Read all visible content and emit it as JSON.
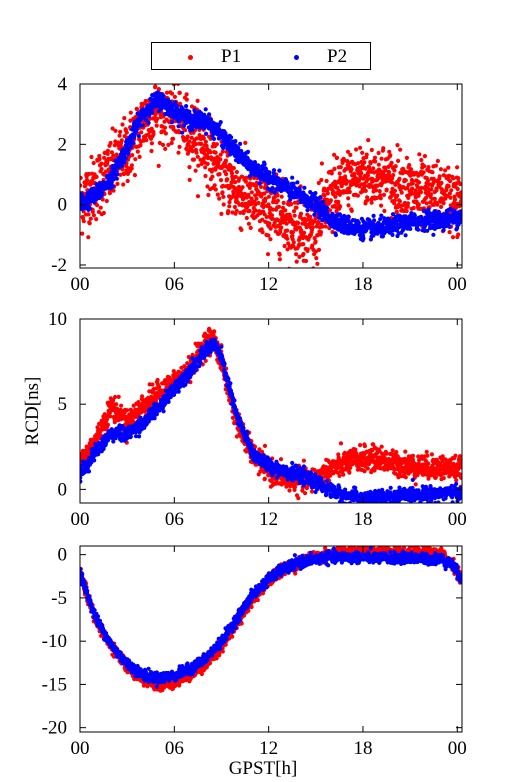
{
  "legend": {
    "entries": [
      {
        "label": "P1",
        "color": "#ff0000"
      },
      {
        "label": "P2",
        "color": "#0000ff"
      }
    ]
  },
  "colors": {
    "P1": "#ff0000",
    "P2": "#0000ff",
    "axis": "#000000"
  },
  "chart_data": [
    {
      "type": "scatter",
      "title": "",
      "xlabel": "",
      "ylabel": "",
      "xlim": [
        0,
        24.3
      ],
      "ylim": [
        -2.1,
        4.0
      ],
      "xticks": [
        "00",
        "06",
        "12",
        "18",
        "00"
      ],
      "xtick_values": [
        0,
        6,
        12,
        18,
        24
      ],
      "yticks": [
        "-2",
        "0",
        "2",
        "4"
      ],
      "ytick_values": [
        -2,
        0,
        2,
        4
      ],
      "noise": {
        "P1": 0.55,
        "P2": 0.15
      },
      "series": [
        {
          "name": "P1",
          "color": "#ff0000",
          "x": [
            0,
            1,
            2,
            3,
            4,
            5,
            6,
            7,
            8,
            9,
            10,
            11,
            12,
            13,
            14,
            15,
            16,
            17,
            18,
            19,
            20,
            21,
            22,
            23,
            24.3
          ],
          "y": [
            0.1,
            0.6,
            1.1,
            1.8,
            2.7,
            3.2,
            3.0,
            2.4,
            1.9,
            1.1,
            0.4,
            0.1,
            -0.2,
            -0.5,
            -0.7,
            -0.8,
            0.3,
            0.7,
            1.0,
            0.9,
            0.7,
            0.5,
            0.3,
            0.2,
            0.1
          ]
        },
        {
          "name": "P2",
          "color": "#0000ff",
          "x": [
            0,
            1,
            2,
            3,
            4,
            5,
            6,
            7,
            8,
            9,
            10,
            11,
            12,
            13,
            14,
            15,
            16,
            17,
            18,
            19,
            20,
            21,
            22,
            23,
            24.3
          ],
          "y": [
            0.0,
            0.3,
            0.9,
            1.9,
            3.0,
            3.5,
            3.1,
            2.8,
            2.8,
            2.3,
            1.7,
            1.2,
            0.9,
            0.6,
            0.3,
            0.0,
            -0.5,
            -0.7,
            -0.8,
            -0.8,
            -0.7,
            -0.6,
            -0.5,
            -0.5,
            -0.4
          ]
        }
      ]
    },
    {
      "type": "scatter",
      "title": "",
      "xlabel": "",
      "ylabel": "RCD[ns]",
      "xlim": [
        0,
        24.3
      ],
      "ylim": [
        -0.8,
        10.0
      ],
      "xticks": [
        "00",
        "06",
        "12",
        "18",
        "00"
      ],
      "xtick_values": [
        0,
        6,
        12,
        18,
        24
      ],
      "yticks": [
        "0",
        "5",
        "10"
      ],
      "ytick_values": [
        0,
        5,
        10
      ],
      "noise": {
        "P1": 0.35,
        "P2": 0.2
      },
      "series": [
        {
          "name": "P1",
          "color": "#ff0000",
          "x": [
            0,
            1,
            2,
            3,
            4,
            5,
            6,
            7,
            8,
            8.5,
            9,
            10,
            11,
            12,
            13,
            14,
            15,
            16,
            17,
            18,
            19,
            20,
            21,
            22,
            23,
            24.3
          ],
          "y": [
            1.6,
            2.8,
            4.9,
            3.9,
            4.9,
            5.6,
            6.2,
            7.1,
            8.6,
            8.8,
            7.5,
            3.9,
            2.0,
            1.1,
            0.7,
            0.5,
            0.6,
            1.2,
            1.6,
            1.8,
            1.8,
            1.5,
            1.4,
            1.3,
            1.3,
            1.2
          ]
        },
        {
          "name": "P2",
          "color": "#0000ff",
          "x": [
            0,
            1,
            2,
            3,
            4,
            5,
            6,
            7,
            8,
            8.5,
            9,
            10,
            11,
            12,
            13,
            14,
            15,
            16,
            17,
            18,
            19,
            20,
            21,
            22,
            23,
            24.3
          ],
          "y": [
            0.9,
            2.2,
            3.3,
            3.2,
            3.9,
            4.8,
            5.9,
            7.0,
            8.1,
            8.6,
            7.7,
            4.2,
            2.1,
            1.4,
            1.1,
            0.8,
            0.4,
            -0.1,
            -0.4,
            -0.5,
            -0.5,
            -0.4,
            -0.3,
            -0.3,
            -0.2,
            -0.2
          ]
        }
      ]
    },
    {
      "type": "scatter",
      "title": "",
      "xlabel": "GPST[h]",
      "ylabel": "",
      "xlim": [
        0,
        24.3
      ],
      "ylim": [
        -20.5,
        1.0
      ],
      "xticks": [
        "00",
        "06",
        "12",
        "18",
        "00"
      ],
      "xtick_values": [
        0,
        6,
        12,
        18,
        24
      ],
      "yticks": [
        "-20",
        "-15",
        "-10",
        "-5",
        "0"
      ],
      "ytick_values": [
        -20,
        -15,
        -10,
        -5,
        0
      ],
      "noise": {
        "P1": 0.35,
        "P2": 0.3
      },
      "series": [
        {
          "name": "P1",
          "color": "#ff0000",
          "x": [
            0,
            0.5,
            1,
            2,
            3,
            4,
            5,
            6,
            7,
            8,
            9,
            10,
            11,
            12,
            13,
            14,
            15,
            16,
            17,
            18,
            19,
            20,
            21,
            22,
            23,
            23.7,
            24.3
          ],
          "y": [
            -2.0,
            -5.0,
            -7.5,
            -10.7,
            -12.9,
            -14.3,
            -15.0,
            -14.7,
            -13.8,
            -12.6,
            -10.6,
            -7.8,
            -5.0,
            -3.0,
            -1.7,
            -0.9,
            -0.3,
            0.1,
            0.3,
            0.4,
            0.3,
            0.2,
            0.1,
            0.1,
            0.0,
            -1.0,
            -3.0
          ]
        },
        {
          "name": "P2",
          "color": "#0000ff",
          "x": [
            0,
            0.5,
            1,
            2,
            3,
            4,
            5,
            6,
            7,
            8,
            9,
            10,
            11,
            12,
            13,
            14,
            15,
            16,
            17,
            18,
            19,
            20,
            21,
            22,
            23,
            23.7,
            24.3
          ],
          "y": [
            -2.0,
            -4.8,
            -7.3,
            -10.5,
            -12.6,
            -13.9,
            -14.3,
            -14.0,
            -13.2,
            -12.0,
            -10.0,
            -7.3,
            -4.6,
            -2.8,
            -1.6,
            -0.9,
            -0.5,
            -0.3,
            -0.3,
            -0.3,
            -0.4,
            -0.4,
            -0.4,
            -0.5,
            -0.5,
            -1.2,
            -3.0
          ]
        }
      ]
    }
  ]
}
